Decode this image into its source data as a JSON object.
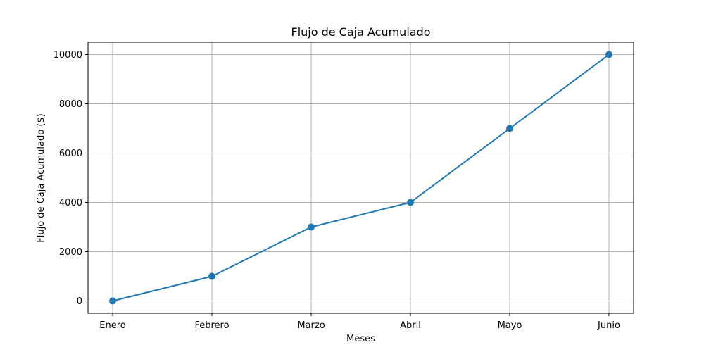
{
  "chart_data": {
    "type": "line",
    "title": "Flujo de Caja Acumulado",
    "xlabel": "Meses",
    "ylabel": "Flujo de Caja Acumulado ($)",
    "categories": [
      "Enero",
      "Febrero",
      "Marzo",
      "Abril",
      "Mayo",
      "Junio"
    ],
    "series": [
      {
        "values": [
          0,
          1000,
          3000,
          4000,
          7000,
          10000
        ],
        "color": "#1f77b4",
        "marker": "circle"
      }
    ],
    "yticks": [
      0,
      2000,
      4000,
      6000,
      8000,
      10000
    ],
    "ylim": [
      -500,
      10500
    ],
    "grid": true,
    "grid_color": "#b0b0b0",
    "axis_color": "#000000"
  }
}
